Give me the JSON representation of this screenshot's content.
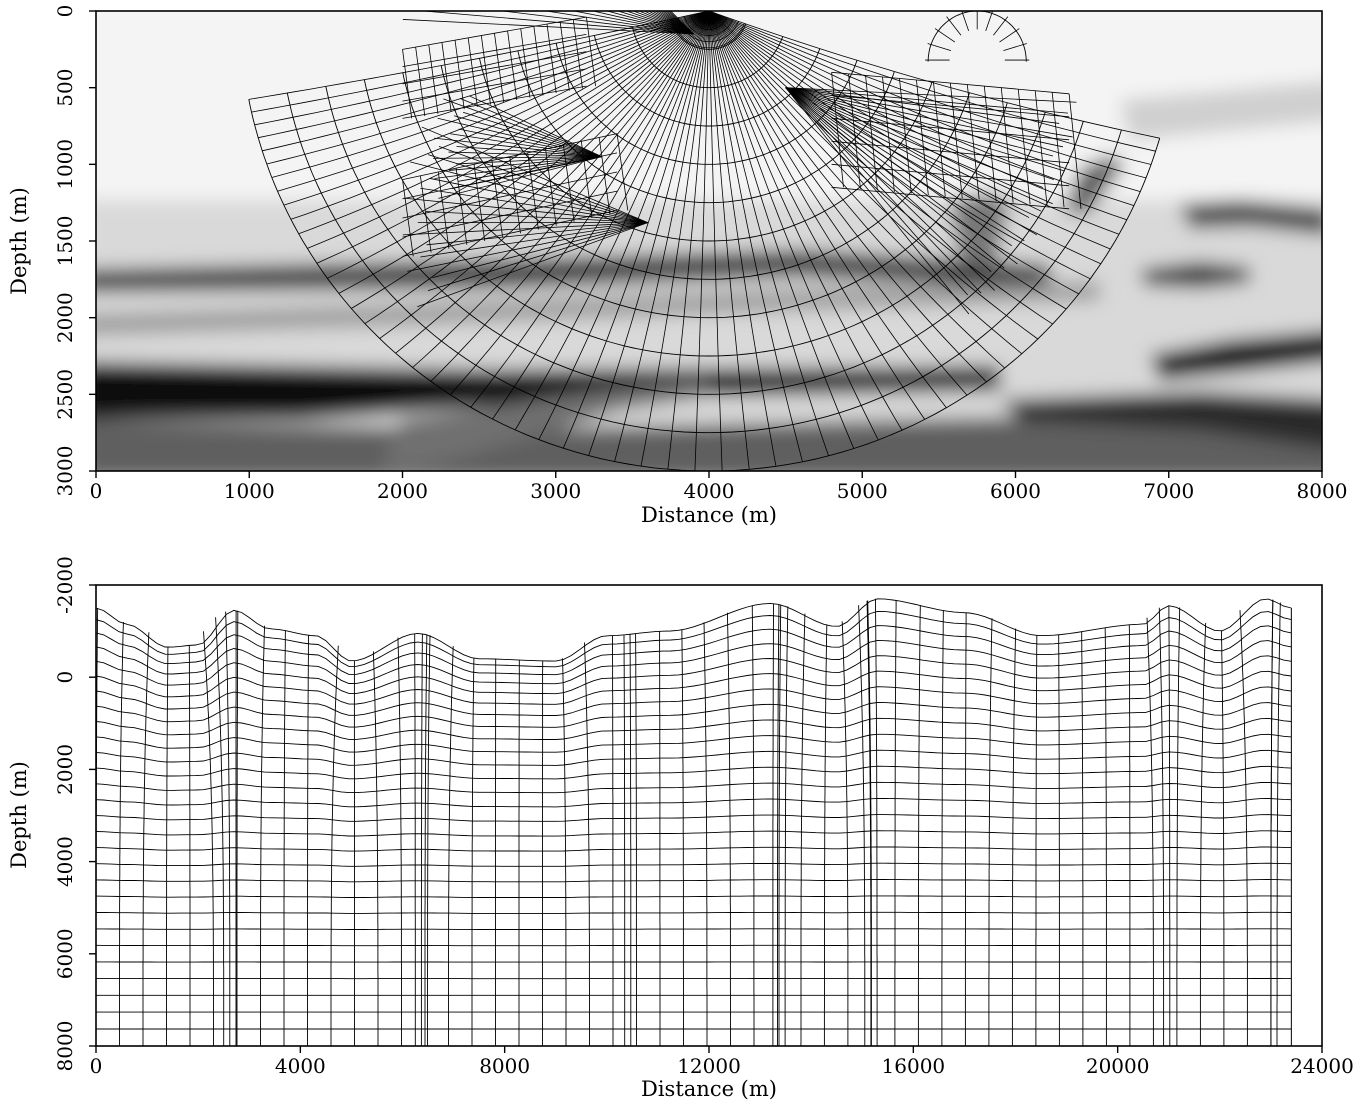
{
  "chart_data": [
    {
      "type": "heatmap",
      "overlay": "ray-coordinate mesh (wavefronts and rays) from a surface source",
      "background": "grayscale seismic velocity/reflectivity image",
      "xlabel": "Distance (m)",
      "ylabel": "Depth (m)",
      "xlim": [
        0,
        8000
      ],
      "ylim": [
        0,
        3000
      ],
      "y_inverted": true,
      "xticks": [
        0,
        1000,
        2000,
        3000,
        4000,
        5000,
        6000,
        7000,
        8000
      ],
      "yticks": [
        0,
        500,
        1000,
        1500,
        2000,
        2500,
        3000
      ],
      "source": {
        "x": 4000,
        "z": 0
      },
      "wavefront_radii_m": [
        250,
        500,
        750,
        1000,
        1250,
        1500,
        1750,
        2000,
        2250,
        2500,
        2750,
        3000
      ],
      "ray_count": 60
    },
    {
      "type": "line",
      "overlay": "curvilinear (terrain-following) coordinate mesh",
      "xlabel": "Distance (m)",
      "ylabel": "Depth (m)",
      "xlim": [
        0,
        24000
      ],
      "ylim": [
        -2000,
        8000
      ],
      "y_inverted": true,
      "xticks": [
        0,
        4000,
        8000,
        12000,
        16000,
        20000,
        24000
      ],
      "yticks": [
        -2000,
        0,
        2000,
        4000,
        6000,
        8000
      ],
      "mesh_x_extent": [
        0,
        23400
      ],
      "surface_topography": {
        "x": [
          0,
          600,
          1400,
          2000,
          2700,
          3400,
          4300,
          5000,
          6300,
          7500,
          9000,
          10000,
          11200,
          13200,
          14500,
          15300,
          17000,
          18500,
          20500,
          21000,
          22000,
          22900,
          23400
        ],
        "z": [
          -1500,
          -1150,
          -650,
          -700,
          -1450,
          -1050,
          -900,
          -350,
          -950,
          -400,
          -350,
          -900,
          -1000,
          -1600,
          -1100,
          -1700,
          -1400,
          -900,
          -1150,
          -1550,
          -1000,
          -1700,
          -1500
        ]
      }
    }
  ]
}
